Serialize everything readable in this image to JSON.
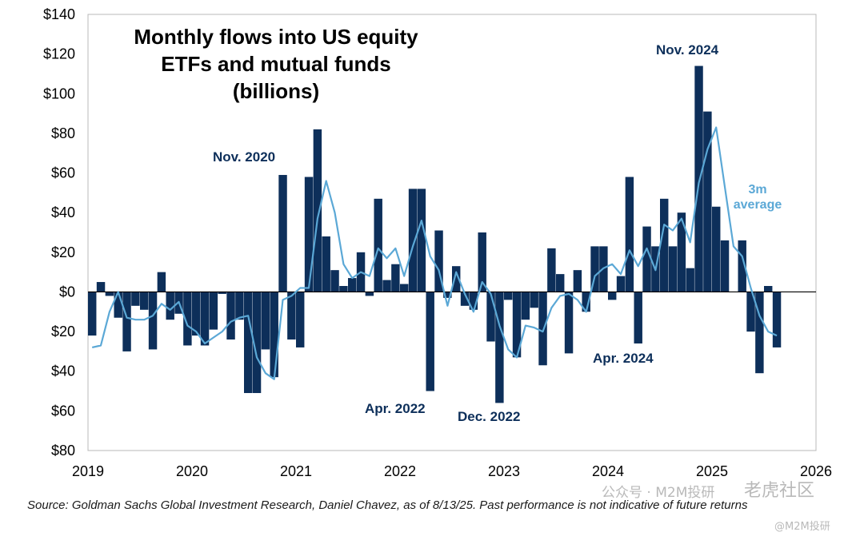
{
  "chart_data": {
    "type": "bar",
    "title_lines": [
      "Monthly flows into US equity",
      "ETFs and mutual funds",
      "(billions)"
    ],
    "ylim": [
      -80,
      140
    ],
    "yticks": [
      140,
      120,
      100,
      80,
      60,
      40,
      20,
      0,
      -20,
      -40,
      -60,
      -80
    ],
    "ytick_labels": [
      "$140",
      "$120",
      "$100",
      "$80",
      "$60",
      "$40",
      "$20",
      "$0",
      "$20",
      "$40",
      "$60",
      "$80"
    ],
    "xlim": [
      2019,
      2026
    ],
    "xticks": [
      2019,
      2020,
      2021,
      2022,
      2023,
      2024,
      2025,
      2026
    ],
    "xtick_labels": [
      "2019",
      "2020",
      "2021",
      "2022",
      "2023",
      "2024",
      "2025",
      "2026"
    ],
    "grid": false,
    "series": [
      {
        "name": "",
        "kind": "bar",
        "color": "#0d2f5a",
        "start": "2019-01",
        "values": [
          -22,
          5,
          -2,
          -13,
          -30,
          -7,
          -9,
          -29,
          10,
          -14,
          -11,
          -27,
          -22,
          -27,
          -19,
          -1,
          -24,
          -14,
          -51,
          -51,
          -29,
          -43,
          59,
          -24,
          -28,
          58,
          82,
          28,
          11,
          3,
          7,
          20,
          -2,
          47,
          6,
          14,
          4,
          52,
          52,
          -50,
          31,
          -3,
          13,
          -7,
          -9,
          30,
          -25,
          -56,
          -4,
          -33,
          -14,
          -8,
          -37,
          22,
          9,
          -31,
          11,
          -10,
          23,
          23,
          -4,
          8,
          58,
          -26,
          33,
          23,
          47,
          23,
          40,
          12,
          114,
          91,
          43,
          26,
          0,
          26,
          -20,
          -41,
          3,
          -28
        ]
      },
      {
        "name": "3m average",
        "kind": "line",
        "color": "#5ba8d6",
        "start": "2019-01",
        "values": [
          -28,
          -27,
          -10,
          0,
          -13,
          -14,
          -14,
          -12,
          -6,
          -9,
          -5,
          -17,
          -20,
          -26,
          -23,
          -20,
          -15,
          -13,
          -12,
          -33,
          -41,
          -44,
          -4,
          -2,
          2,
          2,
          37,
          56,
          40,
          14,
          7,
          10,
          8,
          22,
          17,
          22,
          8,
          23,
          36,
          18,
          11,
          -7,
          10,
          -1,
          -10,
          5,
          -1,
          -17,
          -29,
          -33,
          -17,
          -18,
          -20,
          -8,
          -2,
          -1,
          -4,
          -10,
          8,
          12,
          14,
          9,
          21,
          13,
          22,
          11,
          34,
          31,
          37,
          25,
          55,
          72,
          83,
          53,
          23,
          18,
          2,
          -12,
          -20,
          -22
        ]
      }
    ],
    "annotations": [
      {
        "text": "Nov. 2020",
        "kind": "dark"
      },
      {
        "text": "Apr. 2022",
        "kind": "dark"
      },
      {
        "text": "Dec. 2022",
        "kind": "dark"
      },
      {
        "text": "Apr. 2024",
        "kind": "dark"
      },
      {
        "text": "Nov. 2024",
        "kind": "dark"
      },
      {
        "text": "3m",
        "kind": "light"
      },
      {
        "text": "average",
        "kind": "light"
      }
    ]
  },
  "source_note": "Source: Goldman Sachs Global Investment Research, Daniel Chavez,  as of 8/13/25. Past performance is not indicative of future returns",
  "watermark": {
    "left": "公众号 · M2M投研",
    "right": "老虎社区",
    "bottom": "@M2M投研"
  }
}
